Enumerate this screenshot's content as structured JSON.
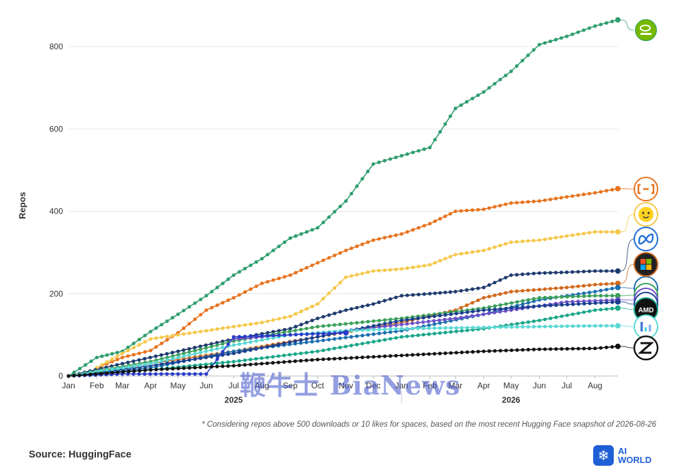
{
  "chart_data": {
    "type": "line",
    "ylabel": "Repos",
    "ylim": [
      0,
      880
    ],
    "yticks": [
      "0",
      "200",
      "400",
      "600",
      "800"
    ],
    "ytick_values": [
      0,
      200,
      400,
      600,
      800
    ],
    "months": [
      "Jan",
      "Feb",
      "Mar",
      "Apr",
      "May",
      "Jun",
      "Jul",
      "Aug",
      "Sep",
      "Oct",
      "Nov",
      "Dec",
      "Jan",
      "Feb",
      "Mar",
      "Apr",
      "May",
      "Jun",
      "Jul",
      "Aug"
    ],
    "month_dates": [
      "2025-01-01",
      "2025-02-01",
      "2025-03-01",
      "2025-04-01",
      "2025-05-01",
      "2025-06-01",
      "2025-07-01",
      "2025-08-01",
      "2025-09-01",
      "2025-10-01",
      "2025-11-01",
      "2025-12-01",
      "2026-01-01",
      "2026-02-01",
      "2026-03-01",
      "2026-04-01",
      "2026-05-01",
      "2026-06-01",
      "2026-07-01",
      "2026-08-01"
    ],
    "years": [
      "2025",
      "2026"
    ],
    "grid": "horizontal",
    "series": [
      {
        "logo": "nvidia-logo",
        "color": "#2e9e6e",
        "x": [
          "2025-01-01",
          "2025-02-01",
          "2025-03-01",
          "2025-04-01",
          "2025-05-01",
          "2025-06-01",
          "2025-07-01",
          "2025-08-01",
          "2025-09-01",
          "2025-10-01",
          "2025-11-01",
          "2025-12-01",
          "2026-01-01",
          "2026-02-01",
          "2026-03-01",
          "2026-04-01",
          "2026-05-01",
          "2026-06-01",
          "2026-07-01",
          "2026-08-01",
          "2026-08-26"
        ],
        "y": [
          0,
          45,
          60,
          108,
          150,
          195,
          245,
          285,
          335,
          360,
          425,
          515,
          535,
          555,
          650,
          690,
          740,
          805,
          825,
          850,
          865
        ]
      },
      {
        "logo": "qwen-logo",
        "color": "#e8731e",
        "x": [
          "2025-02-01",
          "2025-03-01",
          "2025-04-01",
          "2025-05-01",
          "2025-06-01",
          "2025-07-01",
          "2025-08-01",
          "2025-09-01",
          "2025-10-01",
          "2025-11-01",
          "2025-12-01",
          "2026-01-01",
          "2026-02-01",
          "2026-03-01",
          "2026-04-01",
          "2026-05-01",
          "2026-06-01",
          "2026-07-01",
          "2026-08-01",
          "2026-08-26"
        ],
        "y": [
          20,
          45,
          62,
          105,
          160,
          190,
          225,
          245,
          275,
          305,
          330,
          345,
          370,
          400,
          405,
          420,
          425,
          435,
          445,
          455
        ]
      },
      {
        "logo": "huggingface-logo",
        "color": "#f5c84c",
        "x": [
          "2025-02-01",
          "2025-03-01",
          "2025-04-01",
          "2025-05-01",
          "2025-06-01",
          "2025-07-01",
          "2025-08-01",
          "2025-09-01",
          "2025-10-01",
          "2025-11-01",
          "2025-12-01",
          "2026-01-01",
          "2026-02-01",
          "2026-03-01",
          "2026-04-01",
          "2026-05-01",
          "2026-06-01",
          "2026-07-01",
          "2026-08-01",
          "2026-08-26"
        ],
        "y": [
          20,
          55,
          90,
          100,
          110,
          120,
          130,
          145,
          175,
          240,
          255,
          260,
          270,
          295,
          305,
          325,
          330,
          340,
          350,
          350
        ]
      },
      {
        "logo": "meta-logo",
        "color": "#1e3a6e",
        "x": [
          "2025-01-01",
          "2025-03-01",
          "2025-05-01",
          "2025-07-01",
          "2025-09-01",
          "2025-10-01",
          "2025-11-01",
          "2025-12-01",
          "2026-01-01",
          "2026-02-01",
          "2026-03-01",
          "2026-04-01",
          "2026-05-01",
          "2026-06-01",
          "2026-07-01",
          "2026-08-01",
          "2026-08-26"
        ],
        "y": [
          0,
          30,
          60,
          90,
          115,
          140,
          160,
          175,
          195,
          200,
          205,
          215,
          245,
          250,
          252,
          255,
          255
        ]
      },
      {
        "logo": "microsoft-logo",
        "color": "#d0681a",
        "x": [
          "2025-01-01",
          "2025-04-01",
          "2025-07-01",
          "2025-10-01",
          "2026-01-01",
          "2026-03-01",
          "2026-04-01",
          "2026-05-01",
          "2026-06-01",
          "2026-07-01",
          "2026-08-01",
          "2026-08-26"
        ],
        "y": [
          0,
          30,
          60,
          95,
          130,
          160,
          190,
          205,
          210,
          215,
          222,
          225
        ]
      },
      {
        "logo": "deepseek-logo",
        "color": "#1a6fb0",
        "x": [
          "2025-01-01",
          "2025-04-01",
          "2025-07-01",
          "2025-10-01",
          "2026-01-01",
          "2026-04-01",
          "2026-06-01",
          "2026-08-01",
          "2026-08-26"
        ],
        "y": [
          0,
          20,
          60,
          85,
          110,
          150,
          185,
          205,
          215
        ]
      },
      {
        "logo": "google-logo",
        "color": "#3aa05a",
        "x": [
          "2025-01-01",
          "2025-04-01",
          "2025-07-01",
          "2025-10-01",
          "2026-01-01",
          "2026-04-01",
          "2026-06-01",
          "2026-08-01",
          "2026-08-26"
        ],
        "y": [
          0,
          35,
          85,
          120,
          140,
          165,
          190,
          195,
          195
        ]
      },
      {
        "logo": "openai-logo",
        "color": "#6f4fc9",
        "x": [
          "2025-07-01",
          "2025-09-01",
          "2025-11-01",
          "2026-01-01",
          "2026-03-01",
          "2026-05-01",
          "2026-07-01",
          "2026-08-26"
        ],
        "y": [
          90,
          100,
          110,
          125,
          140,
          160,
          180,
          185
        ]
      },
      {
        "logo": "mistral-logo",
        "color": "#1a3f8f",
        "x": [
          "2025-01-01",
          "2025-04-01",
          "2025-07-01",
          "2025-10-01",
          "2026-01-01",
          "2026-04-01",
          "2026-06-01",
          "2026-08-26"
        ],
        "y": [
          0,
          25,
          55,
          95,
          135,
          160,
          170,
          180
        ]
      },
      {
        "logo": "amd-logo",
        "color": "#17a68a",
        "x": [
          "2025-01-01",
          "2025-04-01",
          "2025-07-01",
          "2025-10-01",
          "2026-01-01",
          "2026-04-01",
          "2026-06-01",
          "2026-08-01",
          "2026-08-26"
        ],
        "y": [
          0,
          15,
          35,
          60,
          95,
          115,
          135,
          160,
          165
        ]
      },
      {
        "logo": "bar-chart-logo",
        "color": "#5ad8d4",
        "x": [
          "2025-01-01",
          "2025-04-01",
          "2025-07-01",
          "2025-09-01",
          "2025-11-01",
          "2026-01-01",
          "2026-04-01",
          "2026-06-01",
          "2026-08-01",
          "2026-08-26"
        ],
        "y": [
          0,
          30,
          75,
          100,
          110,
          115,
          118,
          120,
          122,
          122
        ]
      },
      {
        "logo": "blue-series",
        "color": "#2a3bc9",
        "x": [
          "2025-01-01",
          "2025-03-01",
          "2025-05-01",
          "2025-06-01",
          "2025-07-01",
          "2025-09-01",
          "2025-11-01"
        ],
        "y": [
          0,
          5,
          5,
          5,
          95,
          100,
          105
        ]
      },
      {
        "logo": "zhipu-logo",
        "color": "#111111",
        "x": [
          "2025-01-01",
          "2025-04-01",
          "2025-07-01",
          "2025-10-01",
          "2026-01-01",
          "2026-04-01",
          "2026-06-01",
          "2026-08-01",
          "2026-08-26"
        ],
        "y": [
          0,
          15,
          25,
          40,
          50,
          60,
          65,
          67,
          72
        ]
      }
    ]
  },
  "footnote": "* Considering repos above 500 downloads or 10 likes for spaces, based on the most recent Hugging Face snapshot of 2026-08-26",
  "source": "Source: HuggingFace",
  "brand": {
    "line1": "AI",
    "line2": "WORLD"
  },
  "watermark": "鞭牛士 BiaNews"
}
